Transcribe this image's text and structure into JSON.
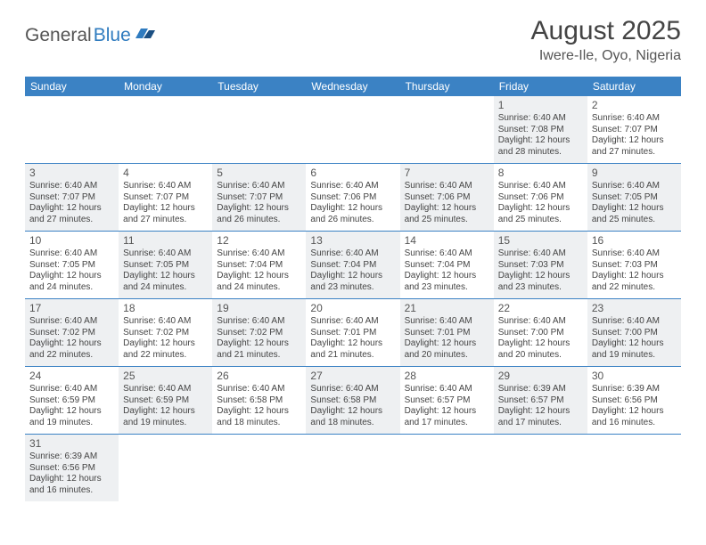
{
  "logo": {
    "general": "General",
    "blue": "Blue"
  },
  "title": "August 2025",
  "location": "Iwere-Ile, Oyo, Nigeria",
  "colors": {
    "header_bg": "#3b82c4",
    "header_text": "#ffffff",
    "shaded_bg": "#eef0f2",
    "rule": "#3b82c4",
    "text": "#444444",
    "logo_gray": "#555555",
    "logo_blue": "#2f7bbf"
  },
  "day_headers": [
    "Sunday",
    "Monday",
    "Tuesday",
    "Wednesday",
    "Thursday",
    "Friday",
    "Saturday"
  ],
  "weeks": [
    [
      {
        "blank": true
      },
      {
        "blank": true
      },
      {
        "blank": true
      },
      {
        "blank": true
      },
      {
        "blank": true
      },
      {
        "day": "1",
        "shaded": true,
        "sunrise": "Sunrise: 6:40 AM",
        "sunset": "Sunset: 7:08 PM",
        "daylight": "Daylight: 12 hours and 28 minutes."
      },
      {
        "day": "2",
        "shaded": false,
        "sunrise": "Sunrise: 6:40 AM",
        "sunset": "Sunset: 7:07 PM",
        "daylight": "Daylight: 12 hours and 27 minutes."
      }
    ],
    [
      {
        "day": "3",
        "shaded": true,
        "sunrise": "Sunrise: 6:40 AM",
        "sunset": "Sunset: 7:07 PM",
        "daylight": "Daylight: 12 hours and 27 minutes."
      },
      {
        "day": "4",
        "shaded": false,
        "sunrise": "Sunrise: 6:40 AM",
        "sunset": "Sunset: 7:07 PM",
        "daylight": "Daylight: 12 hours and 27 minutes."
      },
      {
        "day": "5",
        "shaded": true,
        "sunrise": "Sunrise: 6:40 AM",
        "sunset": "Sunset: 7:07 PM",
        "daylight": "Daylight: 12 hours and 26 minutes."
      },
      {
        "day": "6",
        "shaded": false,
        "sunrise": "Sunrise: 6:40 AM",
        "sunset": "Sunset: 7:06 PM",
        "daylight": "Daylight: 12 hours and 26 minutes."
      },
      {
        "day": "7",
        "shaded": true,
        "sunrise": "Sunrise: 6:40 AM",
        "sunset": "Sunset: 7:06 PM",
        "daylight": "Daylight: 12 hours and 25 minutes."
      },
      {
        "day": "8",
        "shaded": false,
        "sunrise": "Sunrise: 6:40 AM",
        "sunset": "Sunset: 7:06 PM",
        "daylight": "Daylight: 12 hours and 25 minutes."
      },
      {
        "day": "9",
        "shaded": true,
        "sunrise": "Sunrise: 6:40 AM",
        "sunset": "Sunset: 7:05 PM",
        "daylight": "Daylight: 12 hours and 25 minutes."
      }
    ],
    [
      {
        "day": "10",
        "shaded": false,
        "sunrise": "Sunrise: 6:40 AM",
        "sunset": "Sunset: 7:05 PM",
        "daylight": "Daylight: 12 hours and 24 minutes."
      },
      {
        "day": "11",
        "shaded": true,
        "sunrise": "Sunrise: 6:40 AM",
        "sunset": "Sunset: 7:05 PM",
        "daylight": "Daylight: 12 hours and 24 minutes."
      },
      {
        "day": "12",
        "shaded": false,
        "sunrise": "Sunrise: 6:40 AM",
        "sunset": "Sunset: 7:04 PM",
        "daylight": "Daylight: 12 hours and 24 minutes."
      },
      {
        "day": "13",
        "shaded": true,
        "sunrise": "Sunrise: 6:40 AM",
        "sunset": "Sunset: 7:04 PM",
        "daylight": "Daylight: 12 hours and 23 minutes."
      },
      {
        "day": "14",
        "shaded": false,
        "sunrise": "Sunrise: 6:40 AM",
        "sunset": "Sunset: 7:04 PM",
        "daylight": "Daylight: 12 hours and 23 minutes."
      },
      {
        "day": "15",
        "shaded": true,
        "sunrise": "Sunrise: 6:40 AM",
        "sunset": "Sunset: 7:03 PM",
        "daylight": "Daylight: 12 hours and 23 minutes."
      },
      {
        "day": "16",
        "shaded": false,
        "sunrise": "Sunrise: 6:40 AM",
        "sunset": "Sunset: 7:03 PM",
        "daylight": "Daylight: 12 hours and 22 minutes."
      }
    ],
    [
      {
        "day": "17",
        "shaded": true,
        "sunrise": "Sunrise: 6:40 AM",
        "sunset": "Sunset: 7:02 PM",
        "daylight": "Daylight: 12 hours and 22 minutes."
      },
      {
        "day": "18",
        "shaded": false,
        "sunrise": "Sunrise: 6:40 AM",
        "sunset": "Sunset: 7:02 PM",
        "daylight": "Daylight: 12 hours and 22 minutes."
      },
      {
        "day": "19",
        "shaded": true,
        "sunrise": "Sunrise: 6:40 AM",
        "sunset": "Sunset: 7:02 PM",
        "daylight": "Daylight: 12 hours and 21 minutes."
      },
      {
        "day": "20",
        "shaded": false,
        "sunrise": "Sunrise: 6:40 AM",
        "sunset": "Sunset: 7:01 PM",
        "daylight": "Daylight: 12 hours and 21 minutes."
      },
      {
        "day": "21",
        "shaded": true,
        "sunrise": "Sunrise: 6:40 AM",
        "sunset": "Sunset: 7:01 PM",
        "daylight": "Daylight: 12 hours and 20 minutes."
      },
      {
        "day": "22",
        "shaded": false,
        "sunrise": "Sunrise: 6:40 AM",
        "sunset": "Sunset: 7:00 PM",
        "daylight": "Daylight: 12 hours and 20 minutes."
      },
      {
        "day": "23",
        "shaded": true,
        "sunrise": "Sunrise: 6:40 AM",
        "sunset": "Sunset: 7:00 PM",
        "daylight": "Daylight: 12 hours and 19 minutes."
      }
    ],
    [
      {
        "day": "24",
        "shaded": false,
        "sunrise": "Sunrise: 6:40 AM",
        "sunset": "Sunset: 6:59 PM",
        "daylight": "Daylight: 12 hours and 19 minutes."
      },
      {
        "day": "25",
        "shaded": true,
        "sunrise": "Sunrise: 6:40 AM",
        "sunset": "Sunset: 6:59 PM",
        "daylight": "Daylight: 12 hours and 19 minutes."
      },
      {
        "day": "26",
        "shaded": false,
        "sunrise": "Sunrise: 6:40 AM",
        "sunset": "Sunset: 6:58 PM",
        "daylight": "Daylight: 12 hours and 18 minutes."
      },
      {
        "day": "27",
        "shaded": true,
        "sunrise": "Sunrise: 6:40 AM",
        "sunset": "Sunset: 6:58 PM",
        "daylight": "Daylight: 12 hours and 18 minutes."
      },
      {
        "day": "28",
        "shaded": false,
        "sunrise": "Sunrise: 6:40 AM",
        "sunset": "Sunset: 6:57 PM",
        "daylight": "Daylight: 12 hours and 17 minutes."
      },
      {
        "day": "29",
        "shaded": true,
        "sunrise": "Sunrise: 6:39 AM",
        "sunset": "Sunset: 6:57 PM",
        "daylight": "Daylight: 12 hours and 17 minutes."
      },
      {
        "day": "30",
        "shaded": false,
        "sunrise": "Sunrise: 6:39 AM",
        "sunset": "Sunset: 6:56 PM",
        "daylight": "Daylight: 12 hours and 16 minutes."
      }
    ],
    [
      {
        "day": "31",
        "shaded": true,
        "sunrise": "Sunrise: 6:39 AM",
        "sunset": "Sunset: 6:56 PM",
        "daylight": "Daylight: 12 hours and 16 minutes."
      },
      {
        "blank": true
      },
      {
        "blank": true
      },
      {
        "blank": true
      },
      {
        "blank": true
      },
      {
        "blank": true
      },
      {
        "blank": true
      }
    ]
  ]
}
